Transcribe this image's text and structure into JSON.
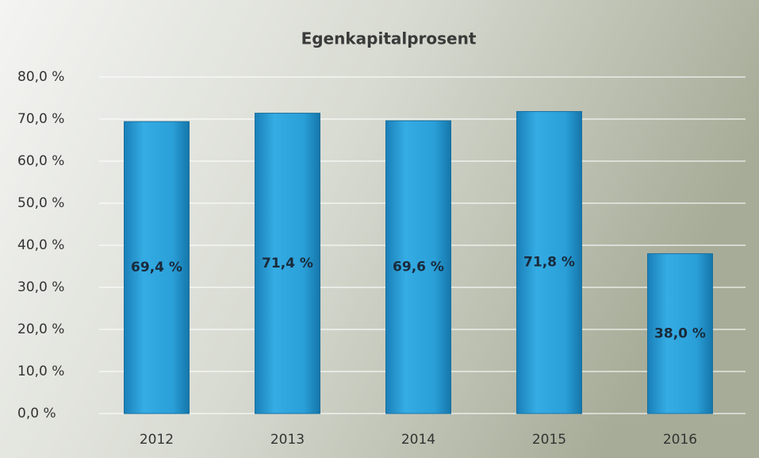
{
  "chart_data": {
    "type": "bar",
    "title": "Egenkapitalprosent",
    "categories": [
      "2012",
      "2013",
      "2014",
      "2015",
      "2016"
    ],
    "values": [
      69.4,
      71.4,
      69.6,
      71.8,
      38.0
    ],
    "value_labels": [
      "69,4 %",
      "71,4 %",
      "69,6 %",
      "71,8 %",
      "38,0 %"
    ],
    "color": "#2a9fd8",
    "ylim": [
      0,
      80
    ],
    "yticks": [
      {
        "value": 0,
        "label": "0,0 %"
      },
      {
        "value": 10,
        "label": "10,0 %"
      },
      {
        "value": 20,
        "label": "20,0 %"
      },
      {
        "value": 30,
        "label": "30,0 %"
      },
      {
        "value": 40,
        "label": "40,0 %"
      },
      {
        "value": 50,
        "label": "50,0 %"
      },
      {
        "value": 60,
        "label": "60,0 %"
      },
      {
        "value": 70,
        "label": "70,0 %"
      },
      {
        "value": 80,
        "label": "80,0 %"
      }
    ],
    "grid": true
  }
}
